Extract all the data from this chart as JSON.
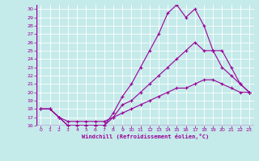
{
  "xlabel": "Windchill (Refroidissement éolien,°C)",
  "bg_color": "#c5eaea",
  "line_color": "#990099",
  "grid_color": "#ffffff",
  "xlim": [
    -0.5,
    23.5
  ],
  "ylim": [
    16,
    30.5
  ],
  "yticks": [
    16,
    17,
    18,
    19,
    20,
    21,
    22,
    23,
    24,
    25,
    26,
    27,
    28,
    29,
    30
  ],
  "xticks": [
    0,
    1,
    2,
    3,
    4,
    5,
    6,
    7,
    8,
    9,
    10,
    11,
    12,
    13,
    14,
    15,
    16,
    17,
    18,
    19,
    20,
    21,
    22,
    23
  ],
  "line1_x": [
    0,
    1,
    2,
    3,
    4,
    5,
    6,
    7,
    8,
    9,
    10,
    11,
    12,
    13,
    14,
    15,
    16,
    17,
    18,
    19,
    20,
    21,
    22,
    23
  ],
  "line1_y": [
    18,
    18,
    17,
    16,
    16,
    16,
    16,
    16,
    17.5,
    19.5,
    21,
    23,
    25,
    27,
    29.5,
    30.5,
    29,
    30,
    28,
    25,
    25,
    23,
    21,
    20
  ],
  "line2_x": [
    0,
    1,
    2,
    3,
    4,
    5,
    6,
    7,
    8,
    9,
    10,
    11,
    12,
    13,
    14,
    15,
    16,
    17,
    18,
    19,
    20,
    21,
    22,
    23
  ],
  "line2_y": [
    18,
    18,
    17,
    16,
    16,
    16,
    16,
    16,
    17,
    18.5,
    19,
    20,
    21,
    22,
    23,
    24,
    25,
    26,
    25,
    25,
    23,
    22,
    21,
    20
  ],
  "line3_x": [
    0,
    1,
    2,
    3,
    4,
    5,
    6,
    7,
    8,
    9,
    10,
    11,
    12,
    13,
    14,
    15,
    16,
    17,
    18,
    19,
    20,
    21,
    22,
    23
  ],
  "line3_y": [
    18,
    18,
    17,
    16.5,
    16.5,
    16.5,
    16.5,
    16.5,
    17,
    17.5,
    18,
    18.5,
    19,
    19.5,
    20,
    20.5,
    20.5,
    21,
    21.5,
    21.5,
    21,
    20.5,
    20,
    20
  ]
}
